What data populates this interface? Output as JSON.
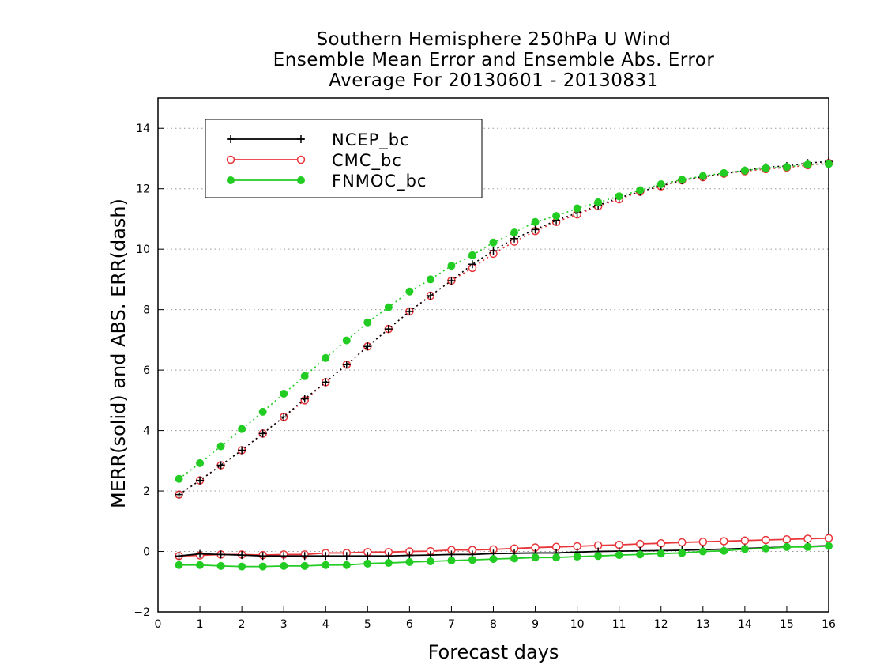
{
  "chart_data": {
    "type": "line",
    "title": [
      "Southern Hemisphere 250hPa U Wind",
      "Ensemble Mean Error and Ensemble Abs. Error",
      "Average For 20130601 - 20130831"
    ],
    "xlabel": "Forecast days",
    "ylabel": "MERR(solid) and ABS. ERR(dash)",
    "xlim": [
      0,
      16
    ],
    "ylim": [
      -2,
      15
    ],
    "xticks": [
      0,
      1,
      2,
      3,
      4,
      5,
      6,
      7,
      8,
      9,
      10,
      11,
      12,
      13,
      14,
      15,
      16
    ],
    "yticks": [
      -2,
      0,
      2,
      4,
      6,
      8,
      10,
      12,
      14
    ],
    "grid": "horizontal dotted",
    "legend_position": "top-left",
    "x": [
      0.5,
      1,
      1.5,
      2,
      2.5,
      3,
      3.5,
      4,
      4.5,
      5,
      5.5,
      6,
      6.5,
      7,
      7.5,
      8,
      8.5,
      9,
      9.5,
      10,
      10.5,
      11,
      11.5,
      12,
      12.5,
      13,
      13.5,
      14,
      14.5,
      15,
      15.5,
      16
    ],
    "series": [
      {
        "name": "NCEP_bc",
        "color": "#000000",
        "marker": "plus",
        "merr": [
          -0.15,
          -0.08,
          -0.1,
          -0.12,
          -0.15,
          -0.15,
          -0.15,
          -0.15,
          -0.15,
          -0.15,
          -0.15,
          -0.13,
          -0.12,
          -0.1,
          -0.1,
          -0.07,
          -0.06,
          -0.05,
          -0.05,
          -0.02,
          0,
          0.01,
          0.02,
          0.03,
          0.04,
          0.06,
          0.08,
          0.1,
          0.12,
          0.15,
          0.17,
          0.19
        ],
        "abs_err": [
          1.88,
          2.35,
          2.85,
          3.35,
          3.9,
          4.45,
          5.05,
          5.6,
          6.18,
          6.78,
          7.36,
          7.94,
          8.46,
          8.96,
          9.5,
          9.95,
          10.35,
          10.65,
          10.95,
          11.2,
          11.45,
          11.7,
          11.9,
          12.1,
          12.28,
          12.4,
          12.5,
          12.6,
          12.72,
          12.75,
          12.85,
          12.9
        ]
      },
      {
        "name": "CMC_bc",
        "color": "#e8353a",
        "marker": "open-circle",
        "merr": [
          -0.15,
          -0.13,
          -0.1,
          -0.1,
          -0.12,
          -0.1,
          -0.1,
          -0.05,
          -0.05,
          -0.02,
          -0.02,
          0,
          0.01,
          0.05,
          0.05,
          0.07,
          0.1,
          0.13,
          0.15,
          0.17,
          0.2,
          0.22,
          0.25,
          0.27,
          0.3,
          0.32,
          0.34,
          0.36,
          0.38,
          0.4,
          0.42,
          0.44
        ],
        "abs_err": [
          1.88,
          2.35,
          2.85,
          3.35,
          3.9,
          4.45,
          5.0,
          5.6,
          6.18,
          6.78,
          7.36,
          7.94,
          8.46,
          8.96,
          9.38,
          9.85,
          10.25,
          10.6,
          10.9,
          11.15,
          11.42,
          11.65,
          11.9,
          12.08,
          12.28,
          12.38,
          12.5,
          12.58,
          12.65,
          12.7,
          12.78,
          12.85
        ]
      },
      {
        "name": "FNMOC_bc",
        "color": "#22cc22",
        "marker": "filled-circle",
        "merr": [
          -0.45,
          -0.45,
          -0.48,
          -0.5,
          -0.5,
          -0.48,
          -0.48,
          -0.45,
          -0.45,
          -0.4,
          -0.38,
          -0.35,
          -0.33,
          -0.3,
          -0.28,
          -0.25,
          -0.23,
          -0.2,
          -0.2,
          -0.17,
          -0.15,
          -0.12,
          -0.1,
          -0.07,
          -0.05,
          0,
          0.02,
          0.08,
          0.1,
          0.15,
          0.15,
          0.18
        ],
        "abs_err": [
          2.4,
          2.92,
          3.48,
          4.05,
          4.62,
          5.22,
          5.8,
          6.4,
          6.98,
          7.58,
          8.08,
          8.6,
          9.0,
          9.45,
          9.8,
          10.22,
          10.55,
          10.9,
          11.1,
          11.35,
          11.55,
          11.75,
          11.95,
          12.15,
          12.3,
          12.42,
          12.52,
          12.6,
          12.68,
          12.72,
          12.8,
          12.82
        ]
      }
    ]
  }
}
